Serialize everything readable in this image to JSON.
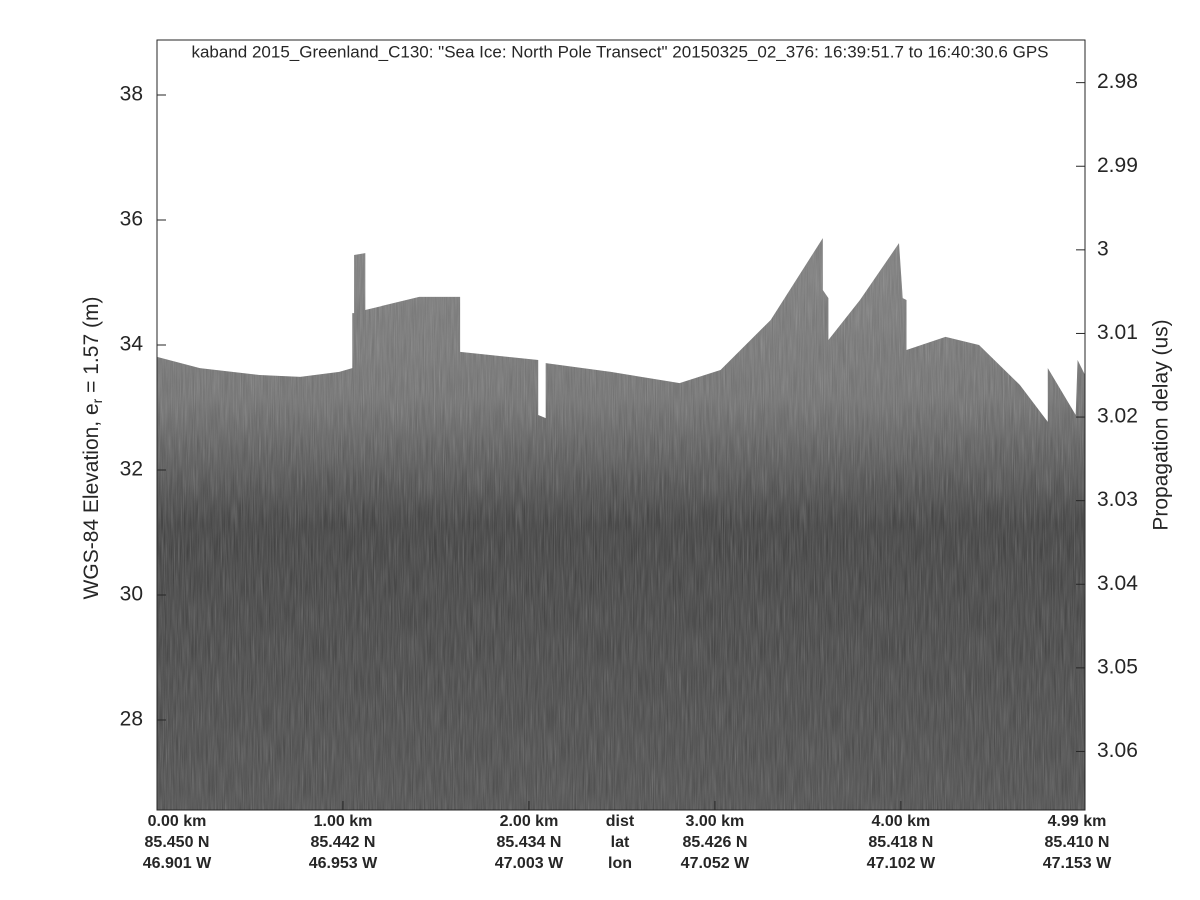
{
  "chart_data": {
    "type": "echogram",
    "title": "kaband 2015_Greenland_C130: \"Sea Ice: North Pole Transect\"  20150325_02_376: 16:39:51.7 to 16:40:30.6 GPS",
    "ylabel": "WGS-84 Elevation, e",
    "ylabel_sub": "r",
    "ylabel_rest": " = 1.57 (m)",
    "y2label": "Propagation delay (us)",
    "ylim": [
      26.56,
      38.88
    ],
    "yticks": [
      28,
      30,
      32,
      34,
      36,
      38
    ],
    "y2lim": [
      3.067,
      2.9749
    ],
    "y2ticks": [
      2.98,
      2.99,
      3,
      3.01,
      3.02,
      3.03,
      3.04,
      3.05,
      3.06
    ],
    "xlim": [
      0,
      4.99
    ],
    "xticks": [
      {
        "value": 0,
        "label": "0.00 km"
      },
      {
        "value": 1,
        "label": "1.00 km"
      },
      {
        "value": 2,
        "label": "2.00 km"
      },
      {
        "value": 3,
        "label": "3.00 km"
      },
      {
        "value": 4,
        "label": "4.00 km"
      },
      {
        "value": 4.99,
        "label": "4.99 km"
      }
    ],
    "lat_labels": [
      "85.450 N",
      "85.442 N",
      "85.434 N",
      "85.426 N",
      "85.418 N",
      "85.410 N"
    ],
    "lon_labels": [
      "46.901 W",
      "46.953 W",
      "47.003 W",
      "47.052 W",
      "47.102 W",
      "47.153 W"
    ],
    "row_labels": [
      "dist",
      "lat",
      "lon"
    ],
    "surface": {
      "x": [
        0,
        0.23,
        0.55,
        0.77,
        0.98,
        1.05,
        1.05,
        1.06,
        1.06,
        1.12,
        1.12,
        1.41,
        1.63,
        1.63,
        2.05,
        2.05,
        2.09,
        2.09,
        2.44,
        2.81,
        3.03,
        3.3,
        3.58,
        3.58,
        3.61,
        3.61,
        3.78,
        3.99,
        4.01,
        4.03,
        4.03,
        4.24,
        4.42,
        4.64,
        4.79,
        4.79,
        4.94,
        4.95,
        4.99
      ],
      "elevation": [
        33.81,
        33.63,
        33.52,
        33.49,
        33.57,
        33.63,
        34.51,
        34.51,
        35.44,
        35.47,
        34.56,
        34.77,
        34.77,
        33.89,
        33.76,
        32.88,
        32.83,
        33.71,
        33.57,
        33.39,
        33.6,
        34.4,
        35.71,
        34.88,
        34.75,
        34.08,
        34.72,
        35.63,
        34.75,
        34.72,
        33.92,
        34.13,
        34,
        33.36,
        32.77,
        33.63,
        32.88,
        33.76,
        33.52
      ]
    }
  }
}
